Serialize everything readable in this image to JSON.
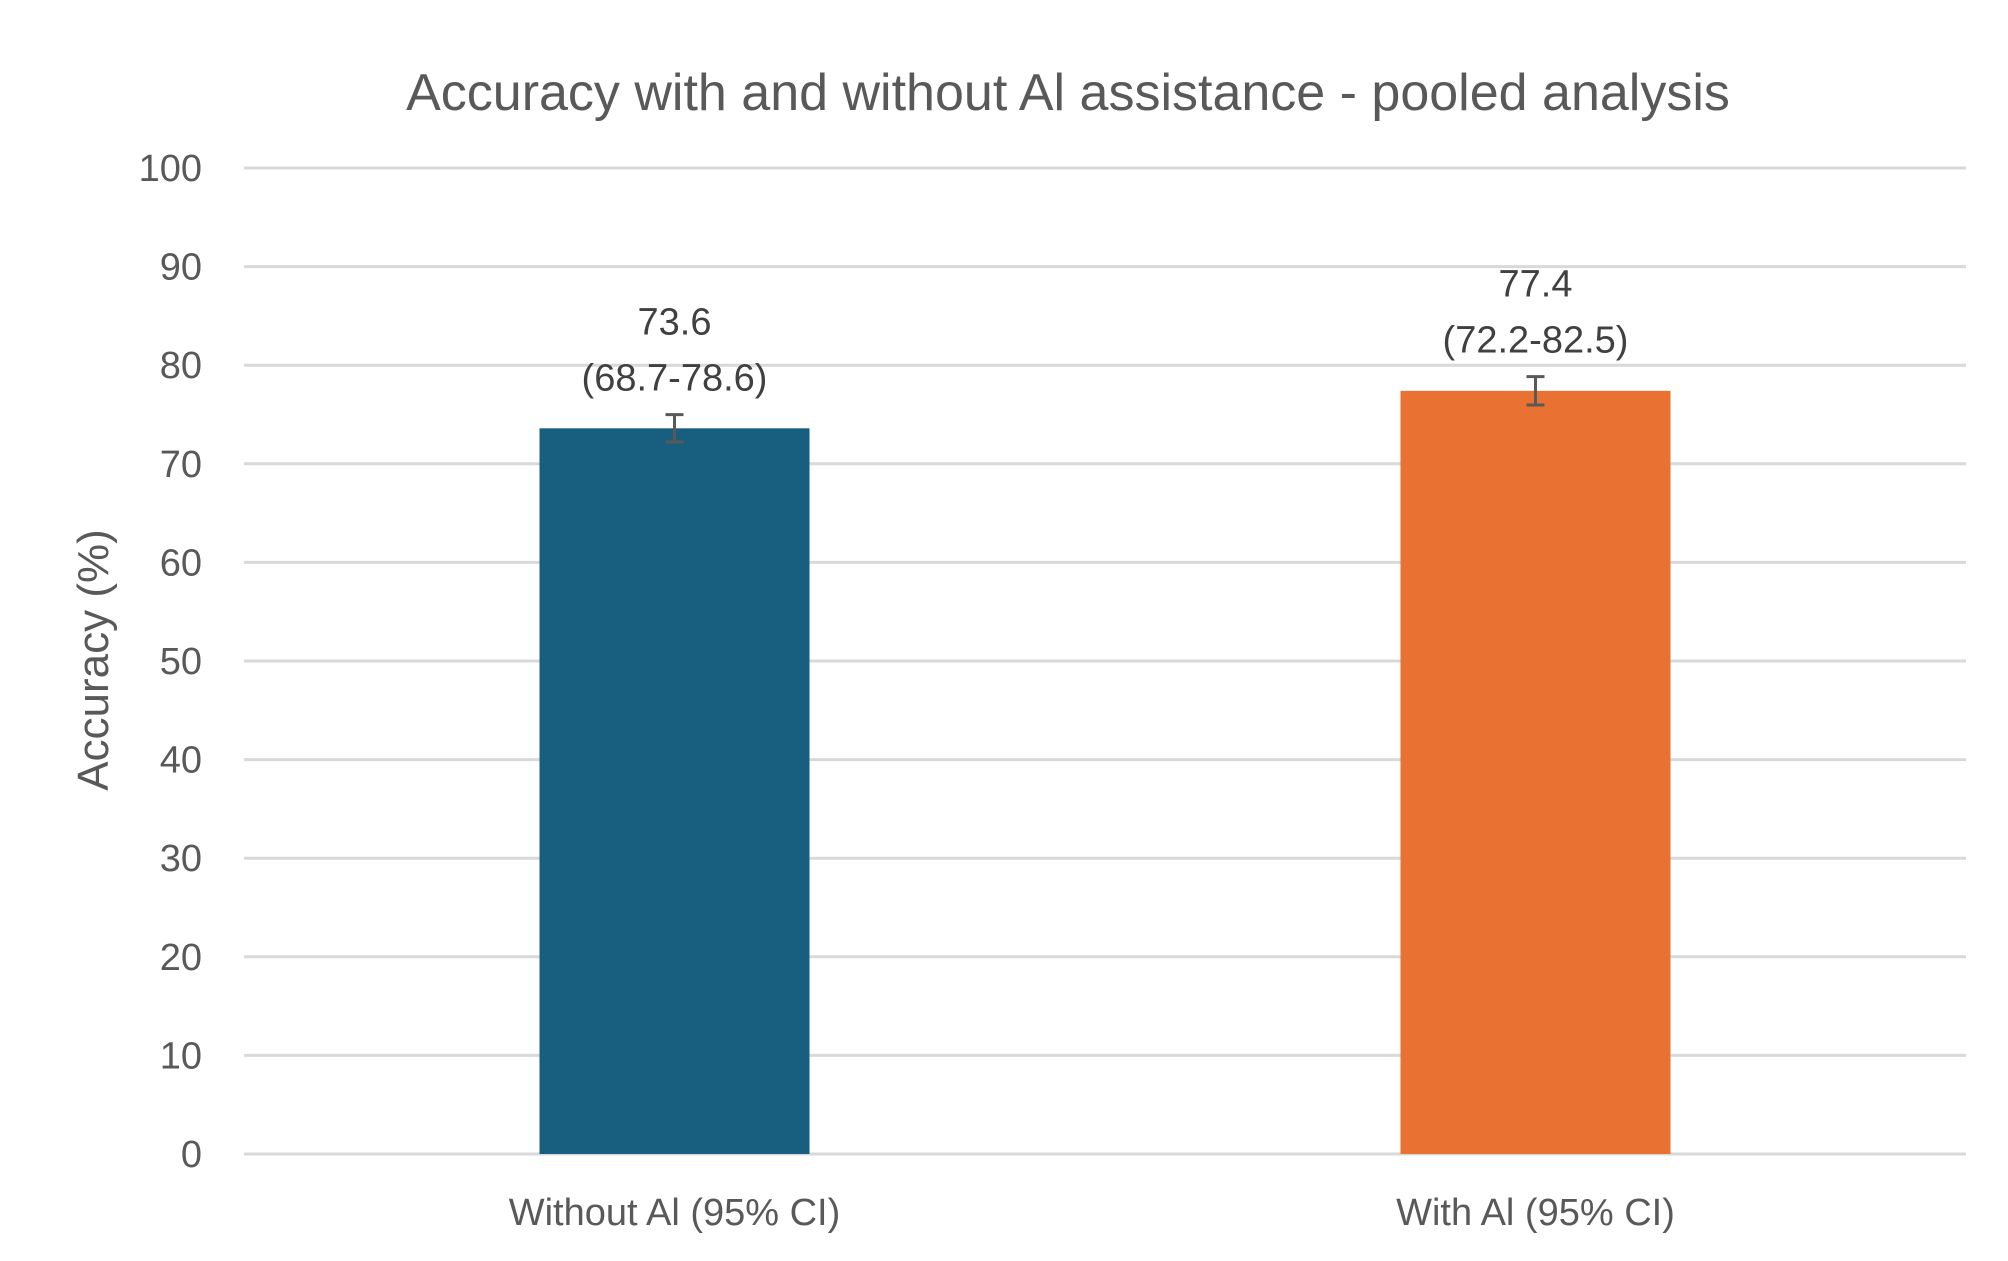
{
  "chart_data": {
    "type": "bar",
    "title": "Accuracy with and without Al assistance - pooled analysis",
    "xlabel": "",
    "ylabel": "Accuracy (%)",
    "ylim": [
      0,
      100
    ],
    "yticks": [
      0,
      10,
      20,
      30,
      40,
      50,
      60,
      70,
      80,
      90,
      100
    ],
    "grid": true,
    "legend": "none",
    "categories": [
      "Without Al (95% CI)",
      "With Al (95% CI)"
    ],
    "values": [
      73.6,
      77.4
    ],
    "ci_lower": [
      68.7,
      72.2
    ],
    "ci_upper": [
      78.6,
      82.5
    ],
    "value_labels": [
      "73.6",
      "77.4"
    ],
    "ci_labels": [
      "(68.7-78.6)",
      "(72.2-82.5)"
    ],
    "colors": [
      "#175e7f",
      "#e97132"
    ]
  }
}
